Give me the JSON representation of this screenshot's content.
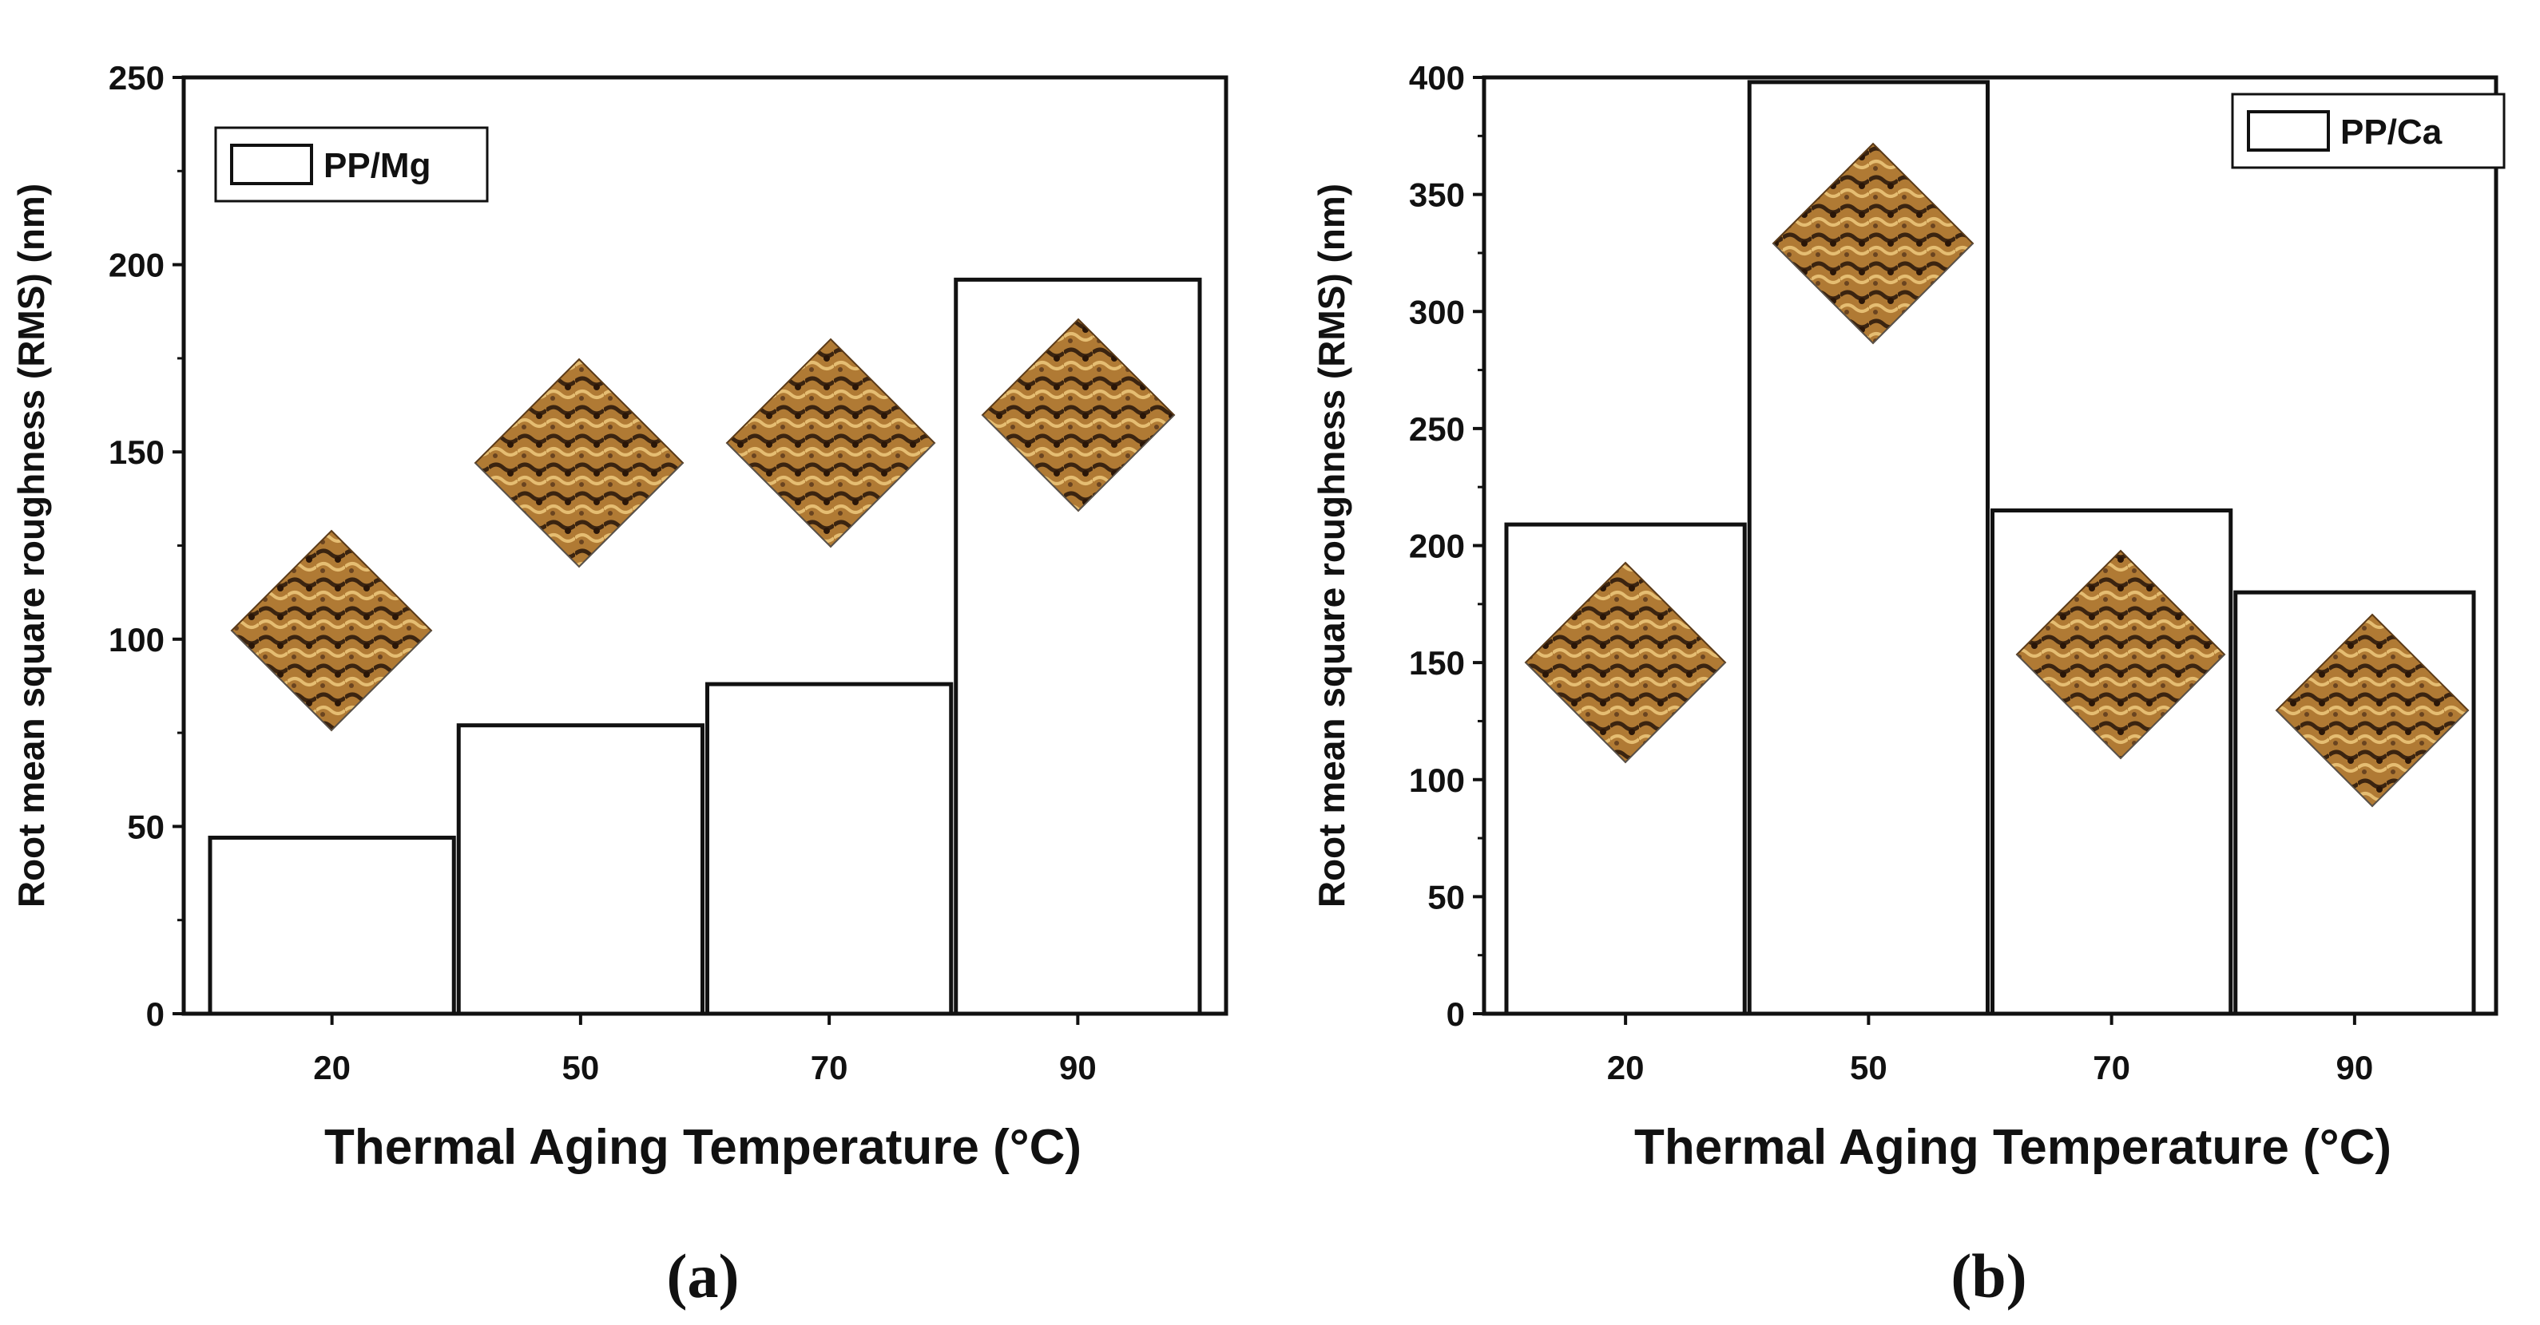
{
  "chart_data": [
    {
      "type": "bar",
      "panel": "(a)",
      "legend": "PP/Mg",
      "legend_position": "top-left",
      "categories": [
        "20",
        "50",
        "70",
        "90"
      ],
      "values": [
        47,
        77,
        88,
        196
      ],
      "ylabel": "Root mean square roughness (RMS) (nm)",
      "xlabel": "Thermal Aging Temperature (°C)",
      "ylim": [
        0,
        250
      ],
      "yticks": [
        "0",
        "50",
        "100",
        "150",
        "200",
        "250"
      ],
      "grid": false,
      "insets": "AFM 3D surface images above each bar"
    },
    {
      "type": "bar",
      "panel": "(b)",
      "legend": "PP/Ca",
      "legend_position": "top-right",
      "categories": [
        "20",
        "50",
        "70",
        "90"
      ],
      "values": [
        209,
        398,
        215,
        180
      ],
      "ylabel": "Root mean square roughness (RMS) (nm)",
      "xlabel": "Thermal Aging Temperature (°C)",
      "ylim": [
        0,
        400
      ],
      "yticks": [
        "0",
        "50",
        "100",
        "150",
        "200",
        "250",
        "300",
        "350",
        "400"
      ],
      "grid": false,
      "insets": "AFM 3D surface images on each bar"
    }
  ]
}
